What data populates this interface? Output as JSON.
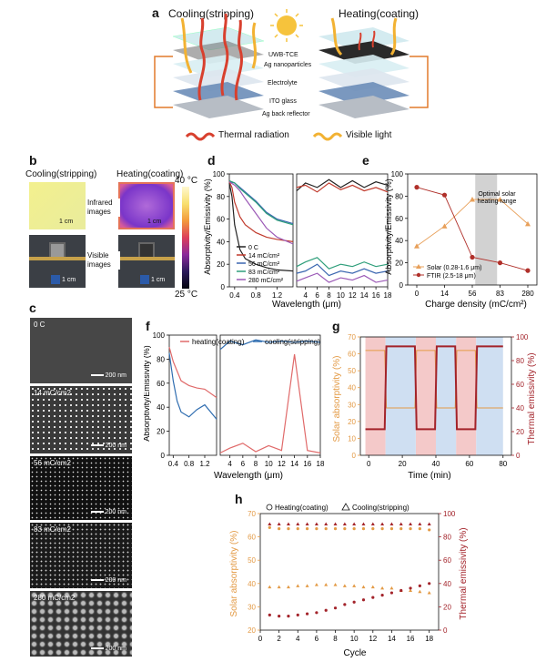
{
  "panels": {
    "a": "a",
    "b": "b",
    "c": "c",
    "d": "d",
    "e": "e",
    "f": "f",
    "g": "g",
    "h": "h"
  },
  "panel_a": {
    "cooling_title": "Cooling(stripping)",
    "heating_title": "Heating(coating)",
    "layers": [
      "UWB-TCE",
      "Ag nanoparticles",
      "Electrolyte",
      "ITO glass",
      "Ag back reflector"
    ],
    "legend_thermal": "Thermal radiation",
    "legend_visible": "Visible light",
    "colors": {
      "thermal": "#d8402e",
      "visible": "#f2b233",
      "sun": "#f6c33c"
    }
  },
  "panel_b": {
    "cooling_title": "Cooling(stripping)",
    "heating_title": "Heating(coating)",
    "infrared_label": "Infrared images",
    "visible_label": "Visible images",
    "scale": "1 cm",
    "temp_max": "40 °C",
    "temp_min": "25 °C"
  },
  "panel_c": {
    "images": [
      {
        "label": "0 C",
        "scale": "200 nm"
      },
      {
        "label": "14 mC/cm2",
        "scale": "200 nm"
      },
      {
        "label": "56 mC/cm2",
        "scale": "200 nm"
      },
      {
        "label": "83 mC/cm2",
        "scale": "200 nm"
      },
      {
        "label": "280 mC/cm2",
        "scale": "200 nm"
      }
    ]
  },
  "chart_data": [
    {
      "id": "d",
      "type": "line",
      "ylabel": "Absorptivity/Emissivity (%)",
      "xlabel": "Wavelength (μm)",
      "ylim": [
        0,
        100
      ],
      "yticks": [
        0,
        20,
        40,
        60,
        80,
        100
      ],
      "xticks_left": [
        "0.4",
        "0.8",
        "1.2"
      ],
      "xticks_right": [
        "4",
        "6",
        "8",
        "10",
        "12",
        "14",
        "16",
        "18"
      ],
      "series": [
        {
          "name": "0 C",
          "color": "#222222",
          "left_x": [
            0.3,
            0.35,
            0.4,
            0.5,
            0.6,
            0.8,
            1.0,
            1.2,
            1.5
          ],
          "left_y": [
            92,
            80,
            55,
            33,
            25,
            20,
            17,
            15,
            14
          ],
          "right_x": [
            2.5,
            4,
            6,
            8,
            10,
            12,
            14,
            16,
            18
          ],
          "right_y": [
            85,
            92,
            88,
            95,
            88,
            94,
            88,
            93,
            90
          ]
        },
        {
          "name": "14 mC/cm²",
          "color": "#c0392b",
          "left_x": [
            0.3,
            0.35,
            0.4,
            0.5,
            0.6,
            0.8,
            1.0,
            1.2,
            1.5
          ],
          "left_y": [
            93,
            88,
            75,
            62,
            55,
            48,
            44,
            42,
            40
          ],
          "right_x": [
            2.5,
            4,
            6,
            8,
            10,
            12,
            14,
            16,
            18
          ],
          "right_y": [
            88,
            90,
            84,
            92,
            86,
            90,
            85,
            88,
            84
          ]
        },
        {
          "name": "56 mC/cm²",
          "color": "#3a66b0",
          "left_x": [
            0.3,
            0.4,
            0.5,
            0.6,
            0.8,
            1.0,
            1.2,
            1.5
          ],
          "left_y": [
            93,
            92,
            88,
            84,
            76,
            66,
            60,
            56
          ],
          "right_x": [
            2.5,
            4,
            6,
            8,
            10,
            12,
            14,
            16,
            18
          ],
          "right_y": [
            12,
            14,
            20,
            10,
            14,
            12,
            16,
            12,
            14
          ]
        },
        {
          "name": "83 mC/cm²",
          "color": "#2e9e7a",
          "left_x": [
            0.3,
            0.4,
            0.5,
            0.6,
            0.8,
            1.0,
            1.2,
            1.5
          ],
          "left_y": [
            94,
            92,
            87,
            83,
            75,
            65,
            59,
            55
          ],
          "right_x": [
            2.5,
            4,
            6,
            8,
            10,
            12,
            14,
            16,
            18
          ],
          "right_y": [
            18,
            22,
            26,
            16,
            20,
            18,
            22,
            18,
            20
          ]
        },
        {
          "name": "280 mC/cm²",
          "color": "#9b59b6",
          "left_x": [
            0.3,
            0.4,
            0.5,
            0.6,
            0.8,
            1.0,
            1.2,
            1.5
          ],
          "left_y": [
            93,
            90,
            85,
            78,
            65,
            52,
            44,
            38
          ],
          "right_x": [
            2.5,
            4,
            6,
            8,
            10,
            12,
            14,
            16,
            18
          ],
          "right_y": [
            5,
            8,
            12,
            4,
            8,
            6,
            10,
            4,
            6
          ]
        }
      ]
    },
    {
      "id": "e",
      "type": "line",
      "ylabel": "Absorptivity/Emissivity (%)",
      "xlabel": "Charge density (mC/cm²)",
      "categories": [
        "0",
        "14",
        "56",
        "83",
        "280"
      ],
      "ylim": [
        0,
        100
      ],
      "yticks": [
        0,
        20,
        40,
        60,
        80,
        100
      ],
      "annotation": "Optimal solar heating range",
      "series": [
        {
          "name": "Solar (0.28-1.6 μm)",
          "color": "#e8a05a",
          "marker": "triangle",
          "values": [
            35,
            53,
            77,
            77,
            55
          ]
        },
        {
          "name": "FTIR (2.5-18 μm)",
          "color": "#b0302a",
          "marker": "circle",
          "values": [
            88,
            81,
            25,
            20,
            13
          ]
        }
      ]
    },
    {
      "id": "f",
      "type": "line",
      "ylabel": "Absorptivity/Emissivity (%)",
      "xlabel": "Wavelength (μm)",
      "ylim": [
        0,
        100
      ],
      "yticks": [
        0,
        20,
        40,
        60,
        80,
        100
      ],
      "xticks_left": [
        "0.4",
        "0.8",
        "1.2"
      ],
      "xticks_right": [
        "4",
        "6",
        "8",
        "10",
        "12",
        "14",
        "16",
        "18"
      ],
      "series": [
        {
          "name": "heating(coating)",
          "color": "#e06a6a",
          "left_x": [
            0.3,
            0.4,
            0.5,
            0.6,
            0.8,
            1.0,
            1.2,
            1.5
          ],
          "left_y": [
            90,
            78,
            70,
            62,
            58,
            56,
            55,
            48
          ],
          "right_x": [
            2.5,
            4,
            6,
            8,
            10,
            12,
            14,
            16,
            18
          ],
          "right_y": [
            2,
            6,
            10,
            3,
            8,
            4,
            84,
            4,
            2
          ]
        },
        {
          "name": "cooling(stripping)",
          "color": "#2f6db0",
          "left_x": [
            0.3,
            0.4,
            0.5,
            0.6,
            0.8,
            1.0,
            1.2,
            1.5
          ],
          "left_y": [
            85,
            62,
            45,
            36,
            32,
            38,
            42,
            30
          ],
          "right_x": [
            2.5,
            4,
            6,
            8,
            10,
            12,
            14,
            16,
            18
          ],
          "right_y": [
            88,
            95,
            92,
            96,
            94,
            95,
            94,
            95,
            94
          ]
        }
      ]
    },
    {
      "id": "g",
      "type": "line",
      "ylabel_left": "Solar absorptivity (%)",
      "ylabel_right": "Thermal emissivity (%)",
      "xlabel": "Time (min)",
      "xlim": [
        -5,
        85
      ],
      "xticks": [
        0,
        20,
        40,
        60,
        80
      ],
      "ylim_left": [
        0,
        70
      ],
      "yticks_left": [
        0,
        10,
        20,
        30,
        40,
        50,
        60,
        70
      ],
      "ylim_right": [
        0,
        100
      ],
      "yticks_right": [
        0,
        20,
        40,
        60,
        80,
        100
      ],
      "heating_intervals": [
        [
          -2,
          10
        ],
        [
          28,
          40
        ],
        [
          52,
          64
        ]
      ],
      "cooling_intervals": [
        [
          10,
          28
        ],
        [
          40,
          52
        ],
        [
          64,
          80
        ]
      ],
      "series": [
        {
          "name": "Solar absorptivity",
          "color": "#e39a45",
          "axis": "left",
          "x": [
            -2,
            9.5,
            10.5,
            27.5,
            28.5,
            39.5,
            40.5,
            51.5,
            52.5,
            63.5,
            64.5,
            80
          ],
          "values": [
            62,
            62,
            28,
            28,
            62,
            62,
            28,
            28,
            62,
            62,
            28,
            28
          ]
        },
        {
          "name": "Thermal emissivity",
          "color": "#a3232a",
          "axis": "right",
          "x": [
            -2,
            9.5,
            10.5,
            27.5,
            28.5,
            39.5,
            40.5,
            51.5,
            52.5,
            63.5,
            64.5,
            80
          ],
          "values": [
            22,
            22,
            92,
            92,
            22,
            22,
            92,
            92,
            22,
            22,
            92,
            92
          ]
        }
      ]
    },
    {
      "id": "h",
      "type": "scatter",
      "xlabel": "Cycle",
      "ylabel_left": "Solar absorptivity (%)",
      "ylabel_right": "Thermal emissivity (%)",
      "legend": [
        "Heating(coating)",
        "Cooling(stripping)"
      ],
      "xticks": [
        0,
        2,
        4,
        6,
        8,
        10,
        12,
        14,
        16,
        18
      ],
      "xlim": [
        0,
        19
      ],
      "ylim_left": [
        20,
        70
      ],
      "yticks_left": [
        20,
        30,
        40,
        50,
        60,
        70
      ],
      "ylim_right": [
        0,
        100
      ],
      "yticks_right": [
        0,
        20,
        40,
        60,
        80,
        100
      ],
      "cycles": [
        1,
        2,
        3,
        4,
        5,
        6,
        7,
        8,
        9,
        10,
        11,
        12,
        13,
        14,
        15,
        16,
        17,
        18
      ],
      "series": [
        {
          "name": "Heating solar absorptivity",
          "color": "#e39a45",
          "axis": "left",
          "values": [
            64,
            63.5,
            63.5,
            63.5,
            63.5,
            63.5,
            63.5,
            63.5,
            63.5,
            63.5,
            63.5,
            63.5,
            63.5,
            63.5,
            63.5,
            63.5,
            63.5,
            63
          ]
        },
        {
          "name": "Cooling solar absorptivity",
          "color": "#e39a45",
          "axis": "left",
          "values": [
            38.5,
            38.5,
            38.5,
            39,
            39,
            39.5,
            39.5,
            39.5,
            39,
            39,
            38.5,
            38.5,
            38,
            38,
            37,
            37,
            36.5,
            36
          ]
        },
        {
          "name": "Cooling thermal emissivity",
          "color": "#a3232a",
          "axis": "right",
          "values": [
            91,
            91,
            91,
            91,
            91,
            91,
            91,
            91,
            91,
            91,
            91,
            91,
            91,
            91,
            91,
            91,
            91,
            91
          ]
        },
        {
          "name": "Heating thermal emissivity",
          "color": "#a3232a",
          "axis": "right",
          "values": [
            13,
            12,
            12,
            13,
            14,
            15,
            17,
            19,
            22,
            24,
            26,
            28,
            30,
            32,
            34,
            36,
            38,
            40
          ]
        }
      ]
    }
  ]
}
